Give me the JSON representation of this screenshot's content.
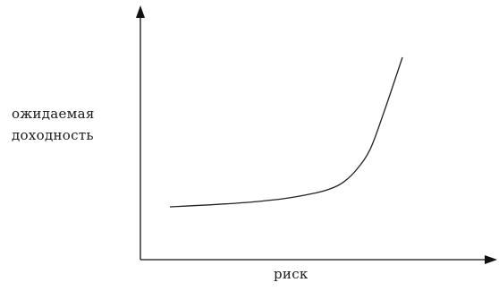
{
  "chart_data": {
    "type": "line",
    "ylabel_line1": "ожидаемая",
    "ylabel_line2": "доходность",
    "xlabel": "риск",
    "grid": false,
    "legend": "none",
    "series": [
      {
        "x": [
          0,
          20,
          35,
          45,
          50,
          54,
          58,
          62,
          66,
          72
        ],
        "y": [
          0,
          3,
          7,
          12,
          16,
          22,
          33,
          50,
          80,
          130
        ]
      }
    ],
    "colors": {
      "line": "#222222",
      "axis": "#111111"
    }
  }
}
